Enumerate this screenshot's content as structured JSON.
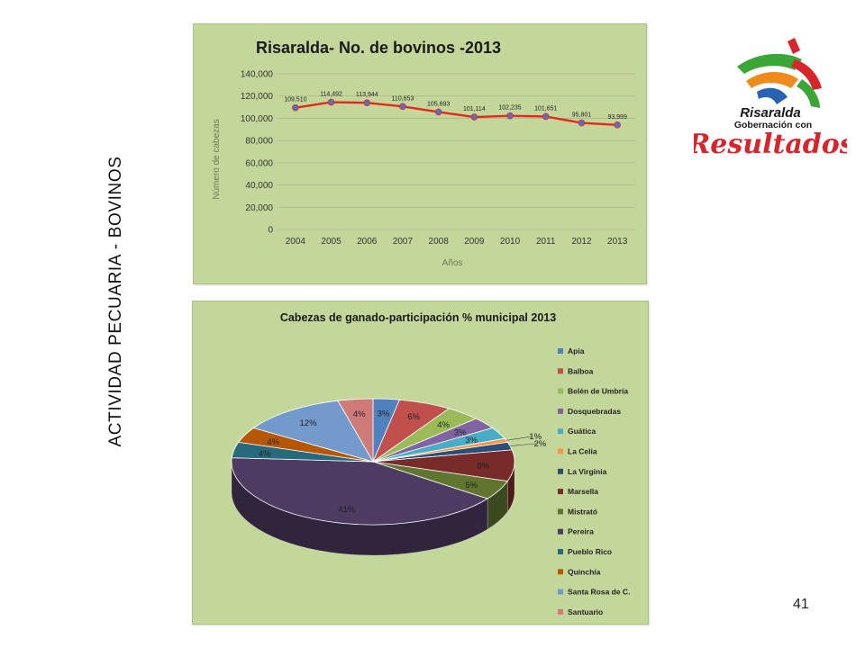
{
  "side_title": "ACTIVIDAD PECUARIA - BOVINOS",
  "page_number": "41",
  "logo": {
    "line1": "Risaralda",
    "line2": "Gobernación con",
    "line3": "Resultados"
  },
  "colors": {
    "panel": "#c4d79b",
    "line": "#e8261e",
    "marker": "#5a6fc0",
    "grid": "#a8b98a",
    "logo_red": "#d7262b"
  },
  "chart_data": [
    {
      "type": "line",
      "title": "Risaralda- No. de bovinos -2013",
      "xlabel": "Años",
      "ylabel": "Número de cabezas",
      "x": [
        "2004",
        "2005",
        "2006",
        "2007",
        "2008",
        "2009",
        "2010",
        "2011",
        "2012",
        "2013"
      ],
      "values": [
        109510,
        114492,
        113944,
        110653,
        105693,
        101114,
        102235,
        101651,
        95801,
        93999
      ],
      "data_labels": [
        "109,510",
        "114,492",
        "113,944",
        "110,653",
        "105,693",
        "101,114",
        "102,235",
        "101,651",
        "95,801",
        "93,999"
      ],
      "yticks": [
        "0",
        "20,000",
        "40,000",
        "60,000",
        "80,000",
        "100,000",
        "120,000",
        "140,000"
      ],
      "ylim": [
        0,
        140000
      ],
      "grid": true,
      "legend": "none"
    },
    {
      "type": "pie",
      "title": "Cabezas de ganado-participación % municipal 2013",
      "legend": "right",
      "slices": [
        {
          "name": "Apia",
          "value": 3,
          "label": "3%",
          "color": "#4f81bd"
        },
        {
          "name": "Balboa",
          "value": 6,
          "label": "6%",
          "color": "#c0504d"
        },
        {
          "name": "Belén de Umbría",
          "value": 4,
          "label": "4%",
          "color": "#9bbb59"
        },
        {
          "name": "Dosquebradas",
          "value": 3,
          "label": "3%",
          "color": "#8064a2"
        },
        {
          "name": "Guática",
          "value": 3,
          "label": "3%",
          "color": "#4bacc6"
        },
        {
          "name": "La Celia",
          "value": 1,
          "label": "1%",
          "color": "#f79646"
        },
        {
          "name": "La Virginia",
          "value": 2,
          "label": "2%",
          "color": "#2c4d75"
        },
        {
          "name": "Marsella",
          "value": 8,
          "label": "8%",
          "color": "#772c2a"
        },
        {
          "name": "Mistrató",
          "value": 5,
          "label": "5%",
          "color": "#5f7530"
        },
        {
          "name": "Pereira",
          "value": 41,
          "label": "41%",
          "color": "#4d3b62"
        },
        {
          "name": "Pueblo Rico",
          "value": 4,
          "label": "4%",
          "color": "#276a7c"
        },
        {
          "name": "Quinchía",
          "value": 4,
          "label": "4%",
          "color": "#b65708"
        },
        {
          "name": "Santa Rosa de C.",
          "value": 12,
          "label": "12%",
          "color": "#729aca"
        },
        {
          "name": "Santuario",
          "value": 4,
          "label": "4%",
          "color": "#cf7b79"
        }
      ]
    }
  ]
}
